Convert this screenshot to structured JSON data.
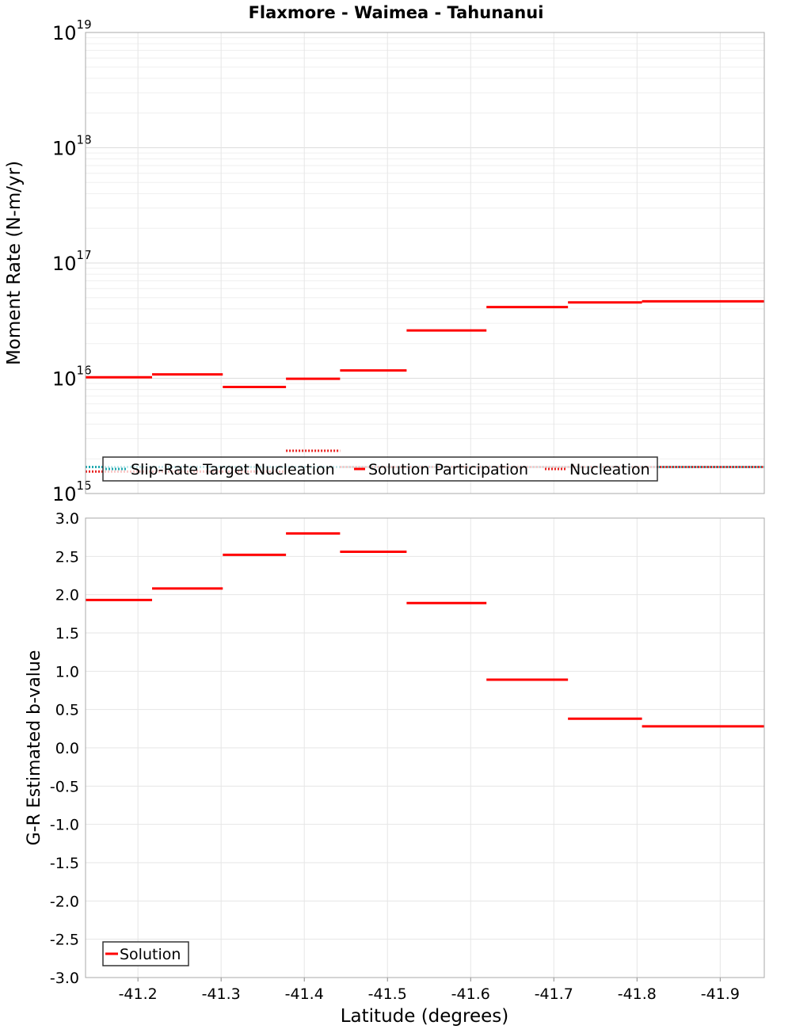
{
  "title": "Flaxmore - Waimea - Tahunanui",
  "colors": {
    "solution": "#ff0000",
    "slip_rate_target": "#1fa9b0",
    "nucleation": "#e8201e",
    "grid": "#e6e6e6",
    "frame": "#aaaaaa",
    "legend_border": "#333333"
  },
  "chart_data": [
    {
      "type": "line",
      "name": "moment-rate-panel",
      "ylabel": "Moment Rate (N-m/yr)",
      "yscale": "log",
      "ylim": [
        1000000000000000.0,
        1e+19
      ],
      "ytick_base": "10",
      "ytick_exponents": [
        "15",
        "16",
        "17",
        "18",
        "19"
      ],
      "xlim": [
        -41.137,
        -41.953
      ],
      "grid": true,
      "legend": {
        "placement": "bottom-center",
        "entries": [
          "Slip-Rate Target Nucleation",
          "Solution Participation",
          "Nucleation"
        ]
      },
      "series": [
        {
          "name": "Solution Participation",
          "style": "solid",
          "segments": [
            {
              "x": [
                -41.137,
                -41.217
              ],
              "y": 1.02e+16
            },
            {
              "x": [
                -41.217,
                -41.302
              ],
              "y": 1.08e+16
            },
            {
              "x": [
                -41.302,
                -41.378
              ],
              "y": 8400000000000000.0
            },
            {
              "x": [
                -41.378,
                -41.443
              ],
              "y": 9900000000000000.0
            },
            {
              "x": [
                -41.443,
                -41.523
              ],
              "y": 1.17e+16
            },
            {
              "x": [
                -41.523,
                -41.619
              ],
              "y": 2.6e+16
            },
            {
              "x": [
                -41.619,
                -41.717
              ],
              "y": 4.15e+16
            },
            {
              "x": [
                -41.717,
                -41.806
              ],
              "y": 4.55e+16
            },
            {
              "x": [
                -41.806,
                -41.953
              ],
              "y": 4.65e+16
            }
          ]
        },
        {
          "name": "Nucleation",
          "style": "dotted",
          "segments": [
            {
              "x": [
                -41.137,
                -41.378
              ],
              "y": 1550000000000000.0
            },
            {
              "x": [
                -41.378,
                -41.443
              ],
              "y": 2350000000000000.0
            },
            {
              "x": [
                -41.443,
                -41.953
              ],
              "y": 1700000000000000.0
            }
          ]
        },
        {
          "name": "Slip-Rate Target Nucleation",
          "style": "dotted",
          "segments": [
            {
              "x": [
                -41.137,
                -41.953
              ],
              "y": 1700000000000000.0
            }
          ]
        }
      ]
    },
    {
      "type": "line",
      "name": "b-value-panel",
      "ylabel": "G-R Estimated b-value",
      "xlabel": "Latitude (degrees)",
      "ylim": [
        -3.0,
        3.0
      ],
      "yticks": [
        "3.0",
        "2.5",
        "2.0",
        "1.5",
        "1.0",
        "0.5",
        "0.0",
        "-0.5",
        "-1.0",
        "-1.5",
        "-2.0",
        "-2.5",
        "-3.0"
      ],
      "xlim": [
        -41.137,
        -41.953
      ],
      "xticks": [
        "-41.2",
        "-41.3",
        "-41.4",
        "-41.5",
        "-41.6",
        "-41.7",
        "-41.8",
        "-41.9"
      ],
      "grid": true,
      "legend": {
        "placement": "bottom-left",
        "entries": [
          "Solution"
        ]
      },
      "series": [
        {
          "name": "Solution",
          "style": "solid",
          "segments": [
            {
              "x": [
                -41.137,
                -41.217
              ],
              "y": 1.93
            },
            {
              "x": [
                -41.217,
                -41.302
              ],
              "y": 2.08
            },
            {
              "x": [
                -41.302,
                -41.378
              ],
              "y": 2.52
            },
            {
              "x": [
                -41.378,
                -41.443
              ],
              "y": 2.8
            },
            {
              "x": [
                -41.443,
                -41.523
              ],
              "y": 2.56
            },
            {
              "x": [
                -41.523,
                -41.619
              ],
              "y": 1.89
            },
            {
              "x": [
                -41.619,
                -41.717
              ],
              "y": 0.89
            },
            {
              "x": [
                -41.717,
                -41.806
              ],
              "y": 0.38
            },
            {
              "x": [
                -41.806,
                -41.953
              ],
              "y": 0.28
            }
          ]
        }
      ]
    }
  ]
}
